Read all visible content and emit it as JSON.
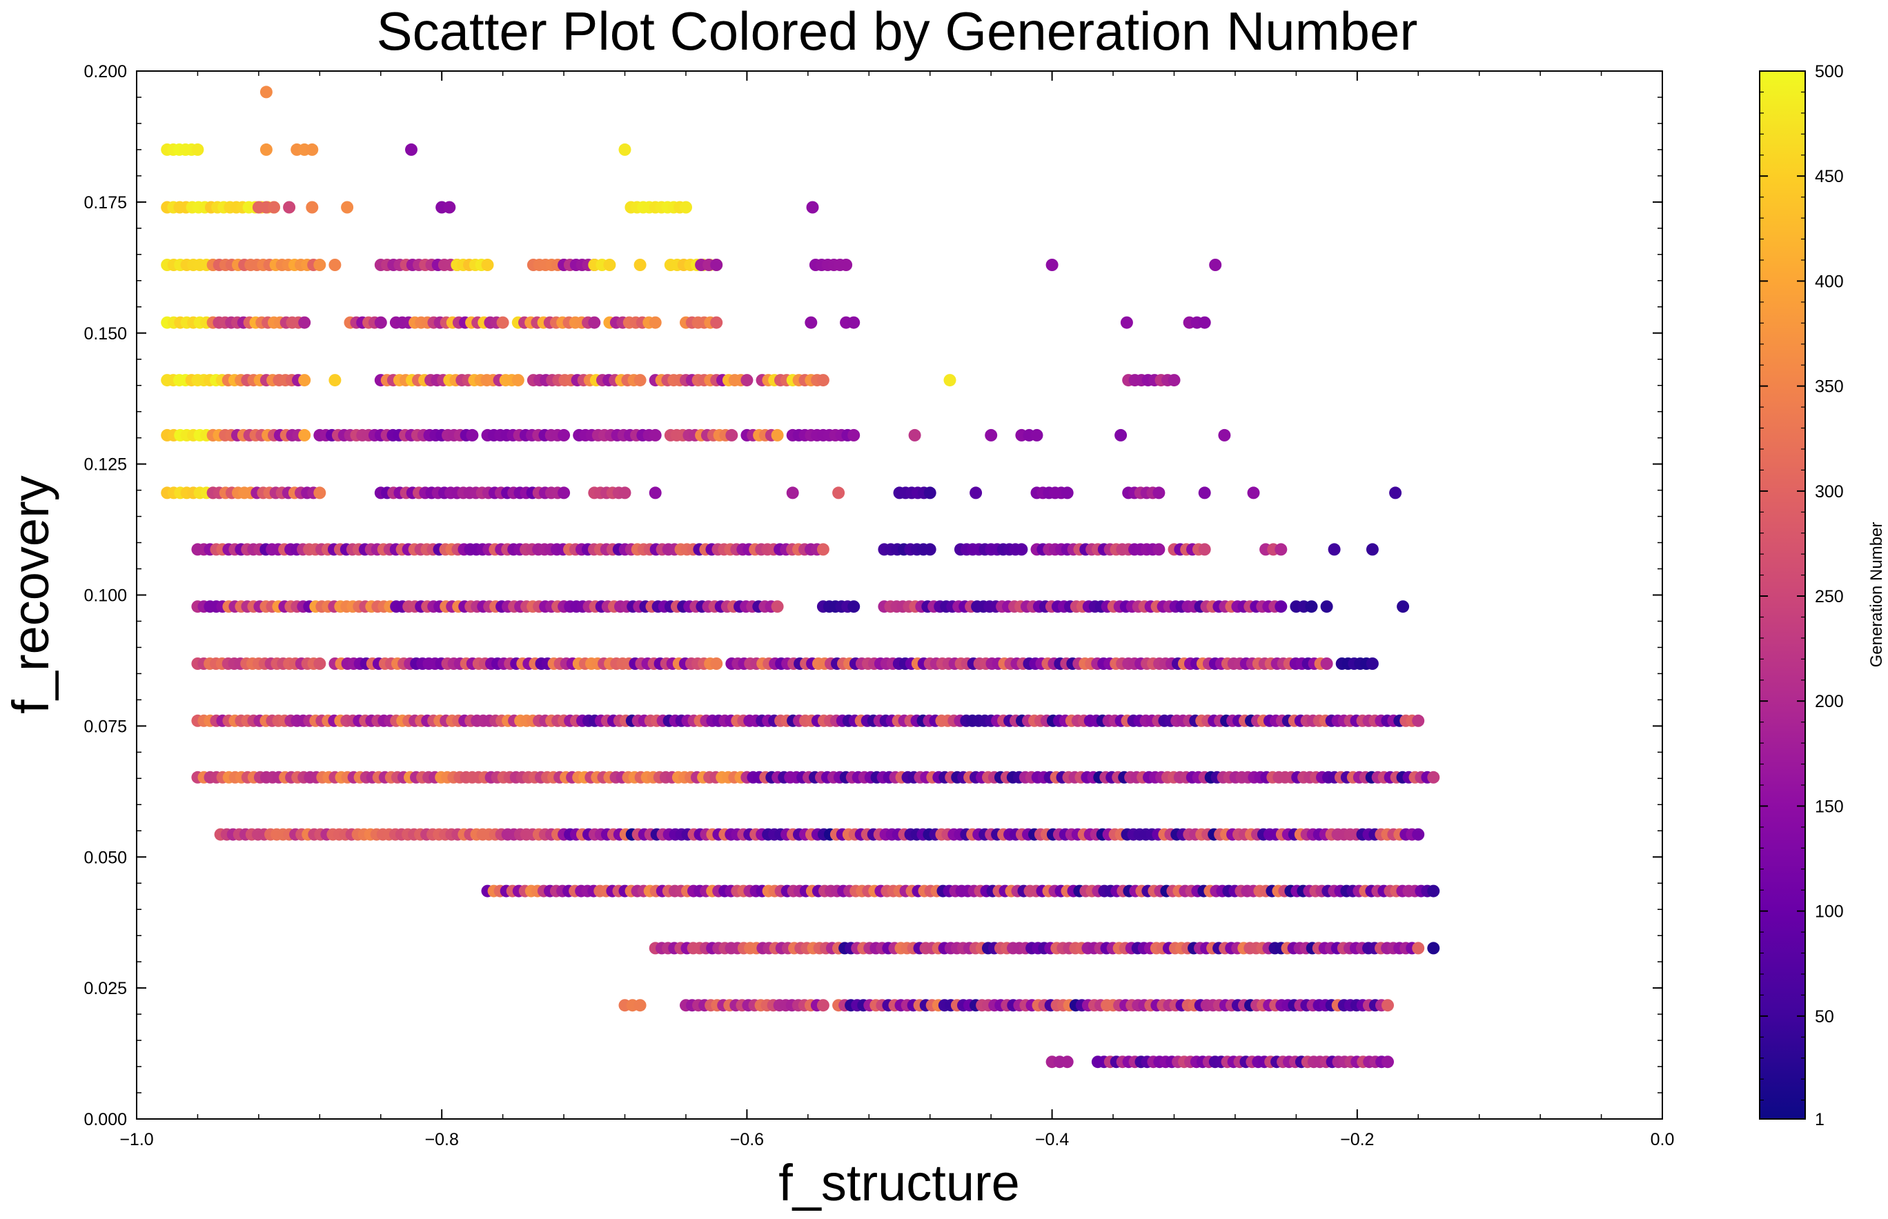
{
  "chart_data": {
    "type": "scatter",
    "title": "Scatter Plot Colored by Generation Number",
    "xlabel": "f_structure",
    "ylabel": "f_recovery",
    "xlim": [
      -1.0,
      0.0
    ],
    "ylim": [
      0.0,
      0.2
    ],
    "x_ticks": [
      -1.0,
      -0.8,
      -0.6,
      -0.4,
      -0.2,
      0.0
    ],
    "x_tick_labels": [
      "−1.0",
      "−0.8",
      "−0.6",
      "−0.4",
      "−0.2",
      "0.0"
    ],
    "y_ticks": [
      0.0,
      0.025,
      0.05,
      0.075,
      0.1,
      0.125,
      0.15,
      0.175,
      0.2
    ],
    "y_tick_labels": [
      "0.000",
      "0.025",
      "0.050",
      "0.075",
      "0.100",
      "0.125",
      "0.150",
      "0.175",
      "0.200"
    ],
    "grid": false,
    "colormap": "plasma",
    "colorbar": {
      "label": "Generation Number",
      "range": [
        1,
        500
      ],
      "ticks": [
        1,
        50,
        100,
        150,
        200,
        250,
        300,
        350,
        400,
        450,
        500
      ],
      "tick_labels": [
        "1",
        "50",
        "100",
        "150",
        "200",
        "250",
        "300",
        "350",
        "400",
        "450",
        "500"
      ]
    },
    "rows": [
      {
        "y": 0.196,
        "segments": [
          [
            -0.915,
            -0.915,
            360,
            360
          ]
        ]
      },
      {
        "y": 0.185,
        "segments": [
          [
            -0.98,
            -0.96,
            480,
            495
          ],
          [
            -0.915,
            -0.915,
            380,
            380
          ],
          [
            -0.895,
            -0.885,
            350,
            380
          ],
          [
            -0.82,
            -0.82,
            140,
            140
          ],
          [
            -0.68,
            -0.68,
            480,
            480
          ]
        ]
      },
      {
        "y": 0.174,
        "segments": [
          [
            -0.98,
            -0.91,
            440,
            495
          ],
          [
            -0.92,
            -0.91,
            300,
            340
          ],
          [
            -0.9,
            -0.9,
            250,
            250
          ],
          [
            -0.885,
            -0.885,
            350,
            350
          ],
          [
            -0.862,
            -0.862,
            360,
            360
          ],
          [
            -0.8,
            -0.795,
            130,
            150
          ],
          [
            -0.676,
            -0.64,
            470,
            490
          ],
          [
            -0.557,
            -0.557,
            150,
            150
          ]
        ]
      },
      {
        "y": 0.163,
        "segments": [
          [
            -0.98,
            -0.95,
            440,
            495
          ],
          [
            -0.95,
            -0.88,
            300,
            420
          ],
          [
            -0.87,
            -0.87,
            350,
            350
          ],
          [
            -0.84,
            -0.79,
            150,
            260
          ],
          [
            -0.79,
            -0.77,
            420,
            480
          ],
          [
            -0.74,
            -0.72,
            330,
            350
          ],
          [
            -0.72,
            -0.7,
            150,
            220
          ],
          [
            -0.7,
            -0.69,
            450,
            480
          ],
          [
            -0.67,
            -0.67,
            450,
            450
          ],
          [
            -0.65,
            -0.62,
            440,
            490
          ],
          [
            -0.63,
            -0.62,
            150,
            200
          ],
          [
            -0.555,
            -0.535,
            150,
            170
          ],
          [
            -0.4,
            -0.4,
            150,
            150
          ],
          [
            -0.293,
            -0.293,
            150,
            150
          ]
        ]
      },
      {
        "y": 0.152,
        "segments": [
          [
            -0.98,
            -0.95,
            450,
            495
          ],
          [
            -0.95,
            -0.89,
            150,
            420
          ],
          [
            -0.86,
            -0.84,
            150,
            360
          ],
          [
            -0.83,
            -0.76,
            120,
            450
          ],
          [
            -0.75,
            -0.7,
            150,
            470
          ],
          [
            -0.69,
            -0.66,
            180,
            470
          ],
          [
            -0.64,
            -0.62,
            200,
            480
          ],
          [
            -0.558,
            -0.558,
            150,
            150
          ],
          [
            -0.535,
            -0.53,
            140,
            150
          ],
          [
            -0.351,
            -0.351,
            150,
            150
          ],
          [
            -0.31,
            -0.3,
            140,
            160
          ]
        ]
      },
      {
        "y": 0.141,
        "segments": [
          [
            -0.98,
            -0.94,
            450,
            495
          ],
          [
            -0.94,
            -0.89,
            150,
            420
          ],
          [
            -0.87,
            -0.87,
            450,
            450
          ],
          [
            -0.84,
            -0.75,
            150,
            460
          ],
          [
            -0.74,
            -0.67,
            150,
            480
          ],
          [
            -0.66,
            -0.6,
            150,
            420
          ],
          [
            -0.59,
            -0.55,
            150,
            480
          ],
          [
            -0.467,
            -0.467,
            480,
            480
          ],
          [
            -0.35,
            -0.32,
            150,
            230
          ]
        ]
      },
      {
        "y": 0.1305,
        "segments": [
          [
            -0.98,
            -0.95,
            440,
            495
          ],
          [
            -0.95,
            -0.89,
            150,
            400
          ],
          [
            -0.88,
            -0.78,
            100,
            250
          ],
          [
            -0.77,
            -0.72,
            120,
            200
          ],
          [
            -0.71,
            -0.66,
            140,
            220
          ],
          [
            -0.65,
            -0.61,
            200,
            370
          ],
          [
            -0.6,
            -0.58,
            130,
            400
          ],
          [
            -0.57,
            -0.53,
            130,
            180
          ],
          [
            -0.49,
            -0.49,
            220,
            220
          ],
          [
            -0.44,
            -0.44,
            150,
            150
          ],
          [
            -0.42,
            -0.41,
            130,
            150
          ],
          [
            -0.355,
            -0.355,
            130,
            130
          ],
          [
            -0.287,
            -0.287,
            150,
            150
          ]
        ]
      },
      {
        "y": 0.1195,
        "segments": [
          [
            -0.98,
            -0.95,
            420,
            480
          ],
          [
            -0.95,
            -0.88,
            150,
            380
          ],
          [
            -0.84,
            -0.79,
            100,
            250
          ],
          [
            -0.79,
            -0.72,
            100,
            220
          ],
          [
            -0.7,
            -0.68,
            230,
            260
          ],
          [
            -0.66,
            -0.66,
            150,
            150
          ],
          [
            -0.57,
            -0.57,
            180,
            180
          ],
          [
            -0.54,
            -0.54,
            290,
            290
          ],
          [
            -0.5,
            -0.48,
            40,
            80
          ],
          [
            -0.45,
            -0.45,
            80,
            80
          ],
          [
            -0.41,
            -0.39,
            130,
            150
          ],
          [
            -0.35,
            -0.33,
            130,
            200
          ],
          [
            -0.3,
            -0.3,
            130,
            130
          ],
          [
            -0.268,
            -0.268,
            150,
            150
          ],
          [
            -0.175,
            -0.175,
            50,
            50
          ]
        ]
      },
      {
        "y": 0.1087,
        "segments": [
          [
            -0.96,
            -0.55,
            80,
            320
          ],
          [
            -0.51,
            -0.48,
            30,
            60
          ],
          [
            -0.46,
            -0.42,
            60,
            100
          ],
          [
            -0.41,
            -0.33,
            80,
            280
          ],
          [
            -0.32,
            -0.3,
            100,
            300
          ],
          [
            -0.26,
            -0.25,
            80,
            300
          ],
          [
            -0.215,
            -0.215,
            50,
            50
          ],
          [
            -0.19,
            -0.19,
            40,
            40
          ]
        ]
      },
      {
        "y": 0.0978,
        "segments": [
          [
            -0.96,
            -0.72,
            100,
            400
          ],
          [
            -0.72,
            -0.58,
            50,
            300
          ],
          [
            -0.55,
            -0.53,
            30,
            60
          ],
          [
            -0.51,
            -0.25,
            50,
            300
          ],
          [
            -0.24,
            -0.23,
            20,
            40
          ],
          [
            -0.22,
            -0.22,
            30,
            30
          ],
          [
            -0.17,
            -0.17,
            30,
            30
          ]
        ]
      },
      {
        "y": 0.0869,
        "segments": [
          [
            -0.96,
            -0.88,
            200,
            330
          ],
          [
            -0.87,
            -0.62,
            80,
            370
          ],
          [
            -0.61,
            -0.22,
            40,
            350
          ],
          [
            -0.21,
            -0.19,
            20,
            40
          ]
        ]
      },
      {
        "y": 0.076,
        "segments": [
          [
            -0.96,
            -0.72,
            150,
            370
          ],
          [
            -0.72,
            -0.16,
            20,
            320
          ]
        ]
      },
      {
        "y": 0.0652,
        "segments": [
          [
            -0.96,
            -0.6,
            200,
            380
          ],
          [
            -0.6,
            -0.15,
            10,
            300
          ]
        ]
      },
      {
        "y": 0.0543,
        "segments": [
          [
            -0.945,
            -0.72,
            200,
            350
          ],
          [
            -0.72,
            -0.16,
            10,
            330
          ]
        ]
      },
      {
        "y": 0.0435,
        "segments": [
          [
            -0.77,
            -0.5,
            100,
            370
          ],
          [
            -0.5,
            -0.15,
            10,
            340
          ]
        ]
      },
      {
        "y": 0.0326,
        "segments": [
          [
            -0.66,
            -0.54,
            150,
            340
          ],
          [
            -0.54,
            -0.16,
            20,
            350
          ],
          [
            -0.15,
            -0.15,
            20,
            20
          ]
        ]
      },
      {
        "y": 0.0217,
        "segments": [
          [
            -0.68,
            -0.67,
            330,
            350
          ],
          [
            -0.64,
            -0.55,
            150,
            320
          ],
          [
            -0.54,
            -0.18,
            20,
            350
          ]
        ]
      },
      {
        "y": 0.0109,
        "segments": [
          [
            -0.4,
            -0.39,
            180,
            200
          ],
          [
            -0.37,
            -0.18,
            50,
            250
          ]
        ]
      }
    ]
  }
}
